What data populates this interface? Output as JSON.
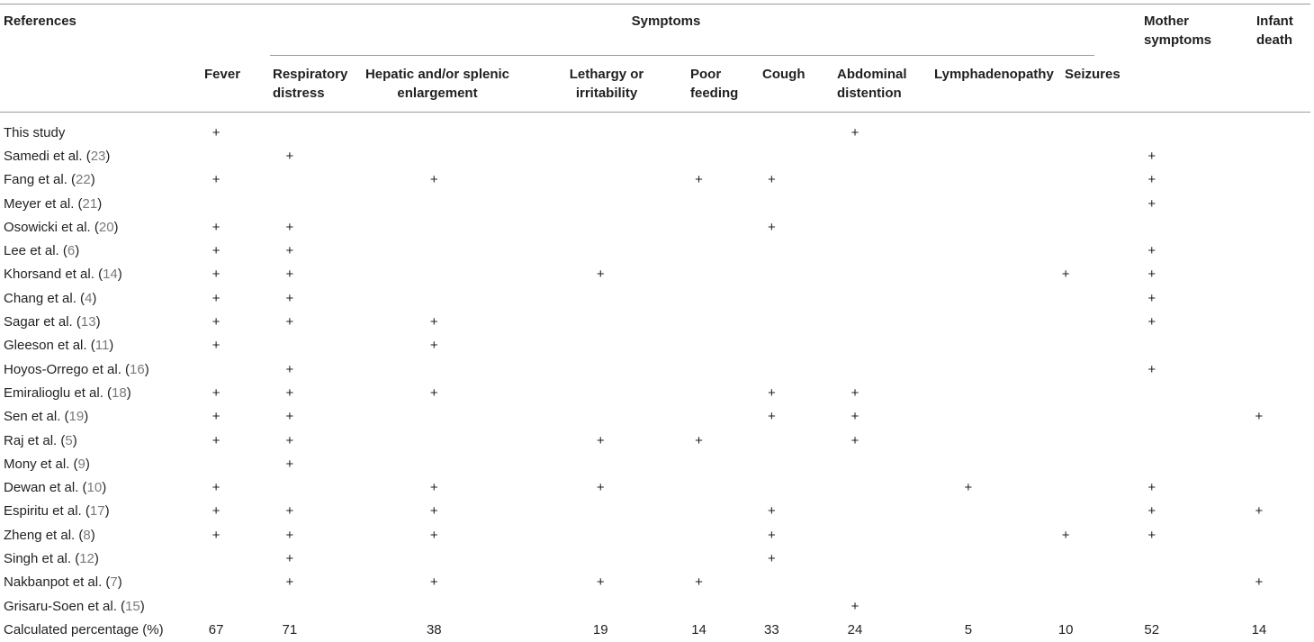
{
  "headers": {
    "references": "References",
    "symptoms": "Symptoms",
    "columns": [
      {
        "key": "fever",
        "label": "Fever"
      },
      {
        "key": "resp",
        "label": "Respiratory distress"
      },
      {
        "key": "hep",
        "label": "Hepatic and/or splenic enlargement"
      },
      {
        "key": "leth",
        "label": "Lethargy or irritability"
      },
      {
        "key": "poor",
        "label": "Poor feeding"
      },
      {
        "key": "cough",
        "label": "Cough"
      },
      {
        "key": "abd",
        "label": "Abdominal distention"
      },
      {
        "key": "lymph",
        "label": "Lymphadenopathy"
      },
      {
        "key": "seiz",
        "label": "Seizures"
      },
      {
        "key": "mother",
        "label": "Mother symptoms"
      },
      {
        "key": "death",
        "label": "Infant death"
      }
    ]
  },
  "mark": "+",
  "rows": [
    {
      "name": "This study",
      "cite": "",
      "marks": [
        1,
        0,
        0,
        0,
        0,
        0,
        1,
        0,
        0,
        0,
        0
      ]
    },
    {
      "name": "Samedi et al. (",
      "cite": "23",
      "marks": [
        0,
        1,
        0,
        0,
        0,
        0,
        0,
        0,
        0,
        1,
        0
      ]
    },
    {
      "name": "Fang et al. (",
      "cite": "22",
      "marks": [
        1,
        0,
        1,
        0,
        1,
        1,
        0,
        0,
        0,
        1,
        0
      ]
    },
    {
      "name": "Meyer et al. (",
      "cite": "21",
      "marks": [
        0,
        0,
        0,
        0,
        0,
        0,
        0,
        0,
        0,
        1,
        0
      ]
    },
    {
      "name": "Osowicki et al. (",
      "cite": "20",
      "marks": [
        1,
        1,
        0,
        0,
        0,
        1,
        0,
        0,
        0,
        0,
        0
      ]
    },
    {
      "name": "Lee et al. (",
      "cite": "6",
      "marks": [
        1,
        1,
        0,
        0,
        0,
        0,
        0,
        0,
        0,
        1,
        0
      ]
    },
    {
      "name": "Khorsand et al. (",
      "cite": "14",
      "marks": [
        1,
        1,
        0,
        1,
        0,
        0,
        0,
        0,
        1,
        1,
        0
      ]
    },
    {
      "name": "Chang et al. (",
      "cite": "4",
      "marks": [
        1,
        1,
        0,
        0,
        0,
        0,
        0,
        0,
        0,
        1,
        0
      ]
    },
    {
      "name": "Sagar et al. (",
      "cite": "13",
      "marks": [
        1,
        1,
        1,
        0,
        0,
        0,
        0,
        0,
        0,
        1,
        0
      ]
    },
    {
      "name": "Gleeson et al. (",
      "cite": "11",
      "marks": [
        1,
        0,
        1,
        0,
        0,
        0,
        0,
        0,
        0,
        0,
        0
      ]
    },
    {
      "name": "Hoyos-Orrego et al. (",
      "cite": "16",
      "marks": [
        0,
        1,
        0,
        0,
        0,
        0,
        0,
        0,
        0,
        1,
        0
      ]
    },
    {
      "name": "Emiralioglu et al. (",
      "cite": "18",
      "marks": [
        1,
        1,
        1,
        0,
        0,
        1,
        1,
        0,
        0,
        0,
        0
      ]
    },
    {
      "name": "Sen et al. (",
      "cite": "19",
      "marks": [
        1,
        1,
        0,
        0,
        0,
        1,
        1,
        0,
        0,
        0,
        1
      ]
    },
    {
      "name": "Raj et al. (",
      "cite": "5",
      "marks": [
        1,
        1,
        0,
        1,
        1,
        0,
        1,
        0,
        0,
        0,
        0
      ]
    },
    {
      "name": "Mony et al. (",
      "cite": "9",
      "marks": [
        0,
        1,
        0,
        0,
        0,
        0,
        0,
        0,
        0,
        0,
        0
      ]
    },
    {
      "name": "Dewan et al. (",
      "cite": "10",
      "marks": [
        1,
        0,
        1,
        1,
        0,
        0,
        0,
        1,
        0,
        1,
        0
      ]
    },
    {
      "name": "Espiritu et al. (",
      "cite": "17",
      "marks": [
        1,
        1,
        1,
        0,
        0,
        1,
        0,
        0,
        0,
        1,
        1
      ]
    },
    {
      "name": "Zheng et al. (",
      "cite": "8",
      "marks": [
        1,
        1,
        1,
        0,
        0,
        1,
        0,
        0,
        1,
        1,
        0
      ]
    },
    {
      "name": "Singh et al. (",
      "cite": "12",
      "marks": [
        0,
        1,
        0,
        0,
        0,
        1,
        0,
        0,
        0,
        0,
        0
      ]
    },
    {
      "name": "Nakbanpot et al. (",
      "cite": "7",
      "marks": [
        0,
        1,
        1,
        1,
        1,
        0,
        0,
        0,
        0,
        0,
        1
      ]
    },
    {
      "name": "Grisaru-Soen et al. (",
      "cite": "15",
      "marks": [
        0,
        0,
        0,
        0,
        0,
        0,
        1,
        0,
        0,
        0,
        0
      ]
    }
  ],
  "percentage_row": {
    "label": "Calculated percentage (%)",
    "values": [
      "67",
      "71",
      "38",
      "19",
      "14",
      "33",
      "24",
      "5",
      "10",
      "52",
      "14"
    ]
  }
}
